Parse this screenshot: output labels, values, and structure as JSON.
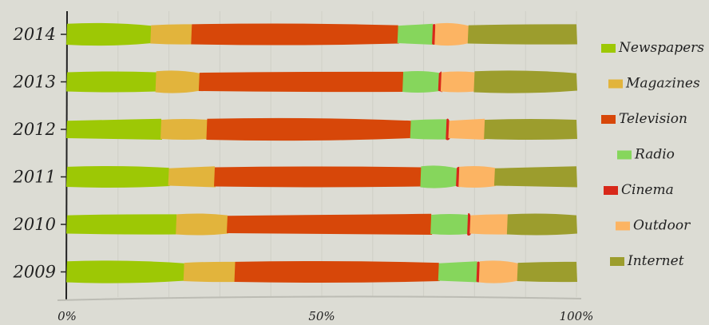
{
  "chart_data": {
    "type": "bar",
    "stacked": true,
    "orientation": "horizontal",
    "normalized_percent": true,
    "title": "",
    "xlabel": "",
    "ylabel": "",
    "categories": [
      "2014",
      "2013",
      "2012",
      "2011",
      "2010",
      "2009"
    ],
    "x_ticks": [
      "0%",
      "50%",
      "100%"
    ],
    "xlim": [
      0,
      100
    ],
    "grid": true,
    "legend_position": "right",
    "series": [
      {
        "name": "Newspapers",
        "color": "#9dc805",
        "values": [
          16.5,
          17.5,
          18.5,
          20.0,
          21.5,
          23.0
        ]
      },
      {
        "name": "Magazines",
        "color": "#e2b43c",
        "values": [
          8.0,
          8.5,
          9.0,
          9.0,
          10.0,
          10.0
        ]
      },
      {
        "name": "Television",
        "color": "#d74709",
        "values": [
          40.5,
          40.0,
          40.0,
          40.5,
          40.0,
          40.0
        ]
      },
      {
        "name": "Radio",
        "color": "#86d65c",
        "values": [
          6.8,
          7.0,
          7.0,
          7.0,
          7.2,
          7.5
        ]
      },
      {
        "name": "Cinema",
        "color": "#d8281a",
        "values": [
          0.5,
          0.5,
          0.5,
          0.5,
          0.5,
          0.5
        ]
      },
      {
        "name": "Outdoor",
        "color": "#fcb463",
        "values": [
          6.5,
          6.5,
          7.0,
          7.0,
          7.3,
          7.5
        ]
      },
      {
        "name": "Internet",
        "color": "#9c9d2d",
        "values": [
          21.2,
          20.0,
          18.0,
          16.0,
          13.5,
          11.5
        ]
      }
    ]
  }
}
